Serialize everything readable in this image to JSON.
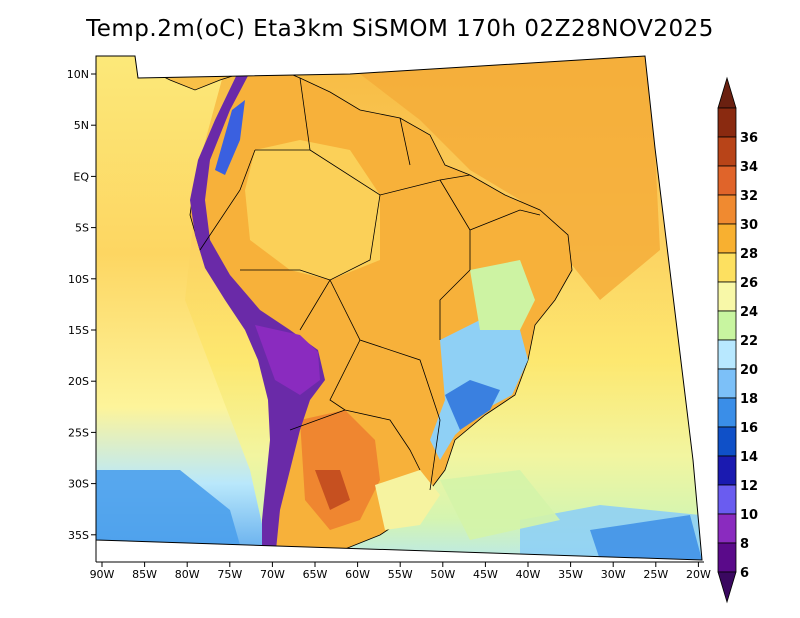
{
  "title": "Temp.2m(oC) Eta3km SiSMOM 170h 02Z28NOV2025",
  "lat_labels": [
    "10N",
    "5N",
    "EQ",
    "5S",
    "10S",
    "15S",
    "20S",
    "25S",
    "30S",
    "35S"
  ],
  "lon_labels": [
    "90W",
    "85W",
    "80W",
    "75W",
    "70W",
    "65W",
    "60W",
    "55W",
    "50W",
    "45W",
    "40W",
    "35W",
    "30W",
    "25W",
    "20W"
  ],
  "colorbar": {
    "labels": [
      "6",
      "8",
      "10",
      "12",
      "14",
      "16",
      "18",
      "20",
      "22",
      "24",
      "26",
      "28",
      "30",
      "32",
      "34",
      "36"
    ],
    "colors": [
      "#5a0a8a",
      "#8a2bbf",
      "#6a5cf0",
      "#1a1ab0",
      "#0f50c8",
      "#3a8ee8",
      "#7cc0f8",
      "#b8e8ff",
      "#c8f5a0",
      "#f8f8a8",
      "#fde060",
      "#f8b030",
      "#f08a30",
      "#e0642a",
      "#b84418",
      "#8a2a10"
    ],
    "below_color": "#3a0860",
    "above_color": "#6a2010"
  },
  "palette": {
    "ocean_north": "#f5b43c",
    "ocean_mid": "#fce35e",
    "ocean_south": "#d2f5a8",
    "land": "#f6b43a",
    "andes": "#6a2aa8"
  }
}
